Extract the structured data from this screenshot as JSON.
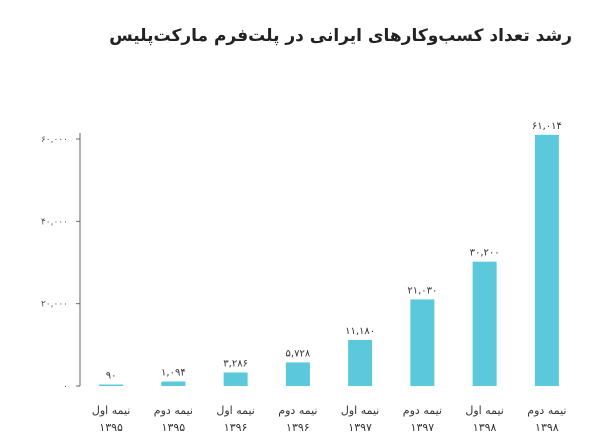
{
  "chart_data": {
    "type": "bar",
    "title": "رشد تعداد کسب‌وکارهای ایرانی در پلت‌فرم مارکت‌پلیس",
    "categories": [
      [
        "نیمه اول",
        "۱۳۹۵"
      ],
      [
        "نیمه دوم",
        "۱۳۹۵"
      ],
      [
        "نیمه اول",
        "۱۳۹۶"
      ],
      [
        "نیمه دوم",
        "۱۳۹۶"
      ],
      [
        "نیمه اول",
        "۱۳۹۷"
      ],
      [
        "نیمه دوم",
        "۱۳۹۷"
      ],
      [
        "نیمه اول",
        "۱۳۹۸"
      ],
      [
        "نیمه دوم",
        "۱۳۹۸"
      ]
    ],
    "values": [
      90,
      1094,
      3286,
      5728,
      11180,
      21030,
      30200,
      61014
    ],
    "value_labels": [
      "۹۰",
      "۱,۰۹۴",
      "۳,۲۸۶",
      "۵,۷۲۸",
      "۱۱,۱۸۰",
      "۲۱,۰۳۰",
      "۳۰,۲۰۰",
      "۶۱,۰۱۴"
    ],
    "ylim": [
      0,
      60000
    ],
    "yticks": [
      0,
      20000,
      40000,
      60000
    ],
    "ytick_labels": [
      "۰",
      "۲۰,۰۰۰",
      "۴۰,۰۰۰",
      "۶۰,۰۰۰"
    ],
    "bar_color": "#5bc8dc",
    "axis_color": "#666666",
    "grid": false
  }
}
